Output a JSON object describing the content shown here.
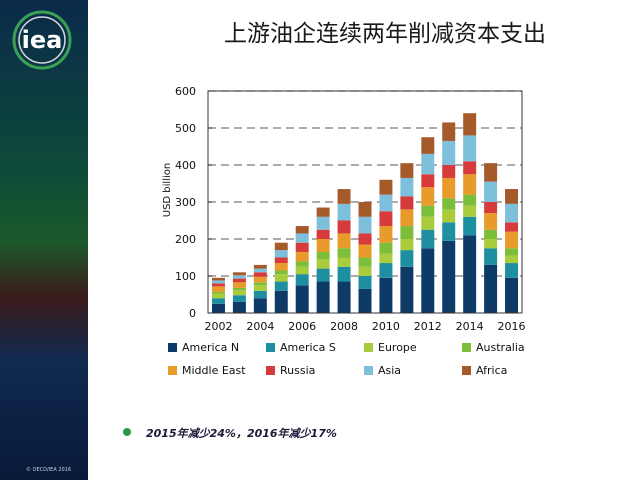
{
  "title": "上游油企连续两年削减资本支出",
  "note": "2015年减少24%，2016年减少17%",
  "logo": "iea",
  "footnote": "© OECD/IEA 2016",
  "sidebar_colors": [
    "#0a2a4a",
    "#1a5a2a",
    "#3a1a1a",
    "#081a3a"
  ],
  "chart_data": {
    "type": "bar",
    "stacked": true,
    "ylabel": "USD billion",
    "ylim": [
      0,
      600
    ],
    "yticks": [
      "0",
      "100",
      "200",
      "300",
      "400",
      "500",
      "600"
    ],
    "xtick_labels": [
      "2002",
      "2004",
      "2006",
      "2008",
      "2010",
      "2012",
      "2014",
      "2016"
    ],
    "categories": [
      "2002",
      "2003",
      "2004",
      "2005",
      "2006",
      "2007",
      "2008",
      "2009",
      "2010",
      "2011",
      "2012",
      "2013",
      "2014",
      "2015",
      "2016"
    ],
    "grid": true,
    "legend_position": "bottom",
    "series": [
      {
        "name": "America N",
        "color": "#0d3a66",
        "values": [
          25,
          30,
          40,
          60,
          75,
          85,
          85,
          65,
          95,
          125,
          175,
          195,
          210,
          130,
          95
        ]
      },
      {
        "name": "America S",
        "color": "#1e8fa0",
        "values": [
          15,
          18,
          20,
          25,
          30,
          35,
          40,
          35,
          40,
          45,
          50,
          50,
          50,
          45,
          40
        ]
      },
      {
        "name": "Europe",
        "color": "#a8cc3c",
        "values": [
          12,
          14,
          15,
          20,
          20,
          25,
          25,
          25,
          25,
          30,
          35,
          35,
          30,
          25,
          20
        ]
      },
      {
        "name": "Australia",
        "color": "#7cbd3a",
        "values": [
          5,
          6,
          8,
          10,
          15,
          20,
          25,
          25,
          30,
          35,
          30,
          30,
          30,
          25,
          20
        ]
      },
      {
        "name": "Middle East",
        "color": "#e89a2a",
        "values": [
          15,
          15,
          15,
          20,
          25,
          35,
          40,
          35,
          45,
          45,
          50,
          55,
          55,
          45,
          45
        ]
      },
      {
        "name": "Russia",
        "color": "#d73a3a",
        "values": [
          8,
          10,
          12,
          15,
          25,
          25,
          35,
          30,
          40,
          35,
          35,
          35,
          35,
          30,
          25
        ]
      },
      {
        "name": "Asia",
        "color": "#7ec0dc",
        "values": [
          8,
          9,
          10,
          20,
          25,
          35,
          45,
          45,
          45,
          50,
          55,
          65,
          70,
          55,
          50
        ]
      },
      {
        "name": "Africa",
        "color": "#a55a2a",
        "values": [
          7,
          8,
          10,
          20,
          20,
          25,
          40,
          40,
          40,
          40,
          45,
          50,
          60,
          50,
          40
        ]
      }
    ]
  }
}
